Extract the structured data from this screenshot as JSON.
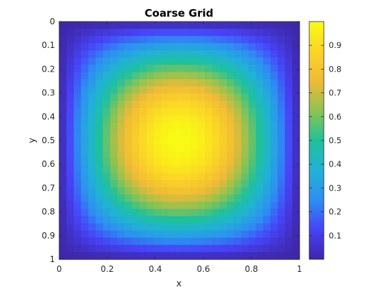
{
  "chart_data": {
    "type": "heatmap",
    "title": "Coarse Grid",
    "xlabel": "x",
    "ylabel": "y",
    "xlim": [
      0,
      1
    ],
    "ylim": [
      0,
      1
    ],
    "y_direction": "reversed",
    "grid_cells": [
      33,
      33
    ],
    "function": "sin(pi*x) * sin(pi*y)",
    "x_ticks": [
      0,
      0.2,
      0.4,
      0.6,
      0.8,
      1
    ],
    "x_tick_labels": [
      "0",
      "0.2",
      "0.4",
      "0.6",
      "0.8",
      "1"
    ],
    "y_ticks": [
      0,
      0.1,
      0.2,
      0.3,
      0.4,
      0.5,
      0.6,
      0.7,
      0.8,
      0.9,
      1
    ],
    "y_tick_labels": [
      "0",
      "0.1",
      "0.2",
      "0.3",
      "0.4",
      "0.5",
      "0.6",
      "0.7",
      "0.8",
      "0.9",
      "1"
    ],
    "colorbar": {
      "colormap": "parula",
      "clim": [
        0,
        1
      ],
      "ticks": [
        0.1,
        0.2,
        0.3,
        0.4,
        0.5,
        0.6,
        0.7,
        0.8,
        0.9
      ],
      "tick_labels": [
        "0.1",
        "0.2",
        "0.3",
        "0.4",
        "0.5",
        "0.6",
        "0.7",
        "0.8",
        "0.9"
      ]
    },
    "colors": {
      "parula_stops": [
        "#3e26a8",
        "#4743f8",
        "#2d8ff2",
        "#20b2d5",
        "#1fc19b",
        "#8cc352",
        "#f0ba36",
        "#fbd526",
        "#f9fb14"
      ]
    }
  }
}
